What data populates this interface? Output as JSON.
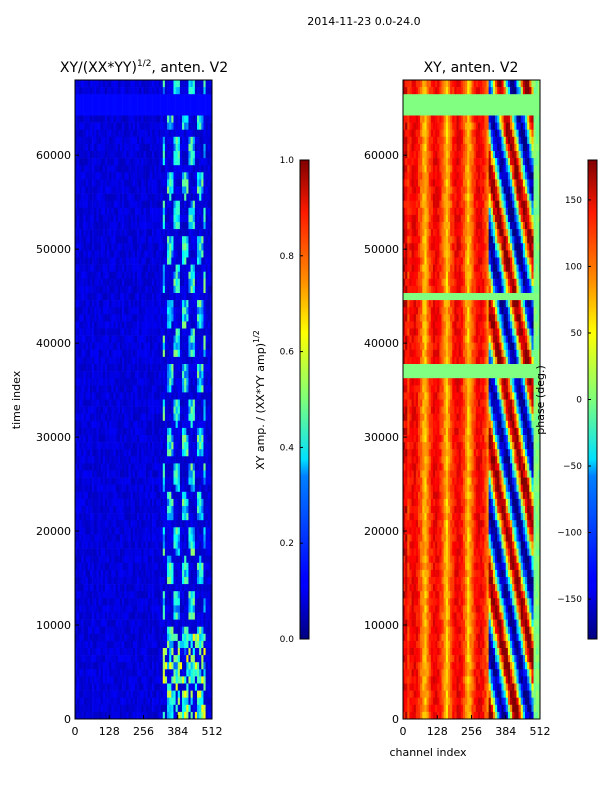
{
  "suptitle": "2014-11-23 0.0-24.0",
  "chart_data": [
    {
      "type": "heatmap",
      "title_main": "XY/(XX*YY)",
      "title_sup": "1/2",
      "title_tail": ", anten. V2",
      "xlabel": "",
      "ylabel": "time index",
      "xlim": [
        0,
        512
      ],
      "ylim": [
        0,
        68000
      ],
      "xticks": [
        0,
        128,
        256,
        384,
        512
      ],
      "yticks": [
        0,
        10000,
        20000,
        30000,
        40000,
        50000,
        60000
      ],
      "colormap": "jet",
      "colorbar": {
        "label_main": "XY amp. / (XX*YY amp)",
        "label_sup": "1/2",
        "range": [
          0.0,
          1.0
        ],
        "ticks": [
          0.0,
          0.2,
          0.4,
          0.6,
          0.8,
          1.0
        ],
        "tick_labels": [
          "0.0",
          "0.2",
          "0.4",
          "0.6",
          "0.8",
          "1.0"
        ]
      },
      "notes": "Mostly low amplitude (~0.05-0.15); channels ~330-490 show elevated amplitude up to ~0.6"
    },
    {
      "type": "heatmap",
      "title_main": "XY, anten. V2",
      "xlabel": "channel index",
      "ylabel": "",
      "xlim": [
        0,
        512
      ],
      "ylim": [
        0,
        68000
      ],
      "xticks": [
        0,
        128,
        256,
        384,
        512
      ],
      "yticks": [
        0,
        10000,
        20000,
        30000,
        40000,
        50000,
        60000
      ],
      "colormap": "jet",
      "colorbar": {
        "label_main": "phase (deg.)",
        "range": [
          -180,
          180
        ],
        "ticks": [
          -150,
          -100,
          -50,
          0,
          50,
          100,
          150
        ],
        "tick_labels": [
          "−150",
          "−100",
          "−50",
          "0",
          "50",
          "100",
          "150"
        ]
      },
      "notes": "Phase ~60-140 deg for channels 0-320; wrapping +/-180 pattern for channels 330-490; ~0 deg beyond 490"
    }
  ]
}
